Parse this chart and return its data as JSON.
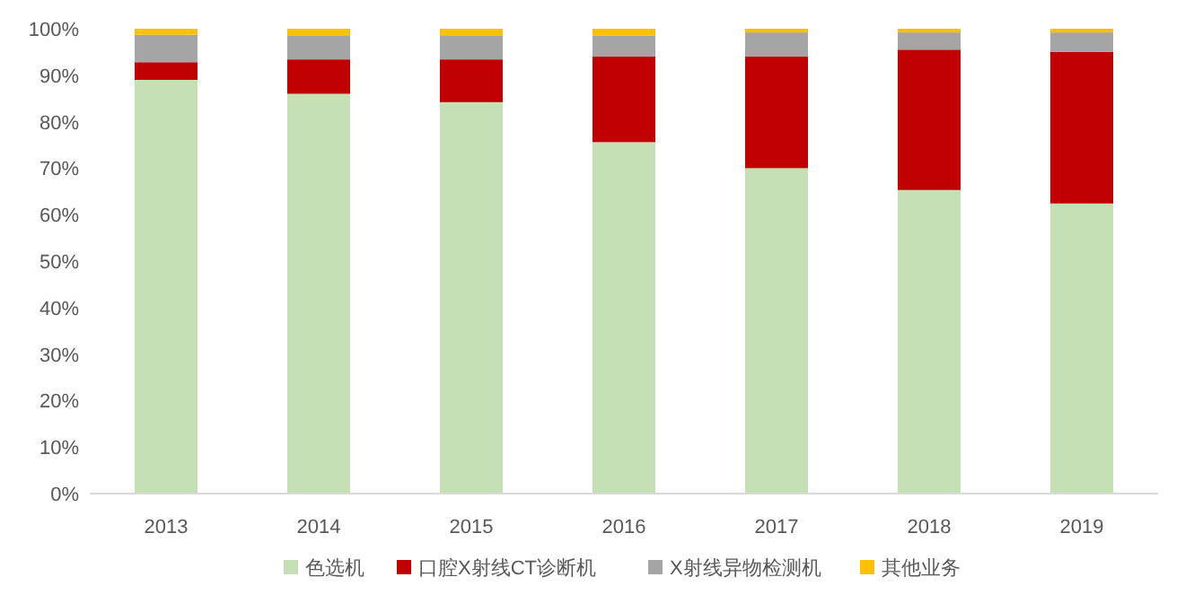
{
  "chart_data": {
    "type": "bar",
    "stacked": true,
    "categories": [
      "2013",
      "2014",
      "2015",
      "2016",
      "2017",
      "2018",
      "2019"
    ],
    "series": [
      {
        "name": "色选机",
        "color": "#c5e0b4",
        "values": [
          89,
          86,
          84.2,
          75.6,
          70,
          65.3,
          62.4
        ]
      },
      {
        "name": "口腔X射线CT诊断机",
        "color": "#c00000",
        "values": [
          3.8,
          7.4,
          9.2,
          18.4,
          24,
          30.2,
          32.6
        ]
      },
      {
        "name": "X射线异物检测机",
        "color": "#a5a5a5",
        "values": [
          5.9,
          5.2,
          5.2,
          4.5,
          5.2,
          3.7,
          4.2
        ]
      },
      {
        "name": "其他业务",
        "color": "#ffc000",
        "values": [
          1.3,
          1.4,
          1.4,
          1.5,
          0.8,
          0.8,
          0.8
        ]
      }
    ],
    "ylim": [
      0,
      100
    ],
    "yticks": [
      {
        "value": 0,
        "label": "0%"
      },
      {
        "value": 10,
        "label": "10%"
      },
      {
        "value": 20,
        "label": "20%"
      },
      {
        "value": 30,
        "label": "30%"
      },
      {
        "value": 40,
        "label": "40%"
      },
      {
        "value": 50,
        "label": "50%"
      },
      {
        "value": 60,
        "label": "60%"
      },
      {
        "value": 70,
        "label": "70%"
      },
      {
        "value": 80,
        "label": "80%"
      },
      {
        "value": 90,
        "label": "90%"
      },
      {
        "value": 100,
        "label": "100%"
      }
    ],
    "grid": false,
    "legend": "bottom"
  }
}
